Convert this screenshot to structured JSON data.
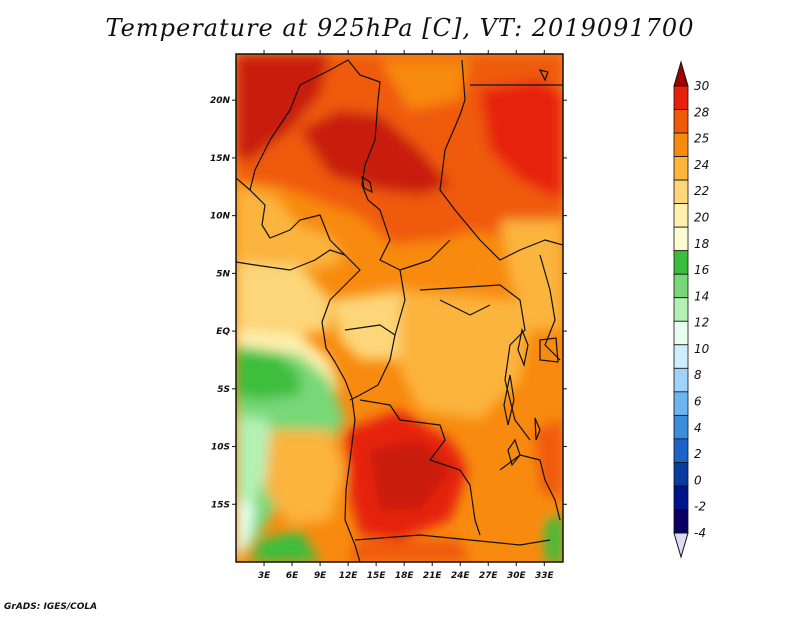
{
  "title": "Temperature at 925hPa [C], VT: 2019091700",
  "footer": "GrADS: IGES/COLA",
  "map": {
    "variable": "Temperature",
    "level": "925hPa",
    "units": "C",
    "valid_time": "2019091700",
    "lon_range": [
      0,
      35
    ],
    "lat_range": [
      -20,
      24
    ],
    "lon_ticks": [
      {
        "value": 3,
        "label": "3E"
      },
      {
        "value": 6,
        "label": "6E"
      },
      {
        "value": 9,
        "label": "9E"
      },
      {
        "value": 12,
        "label": "12E"
      },
      {
        "value": 15,
        "label": "15E"
      },
      {
        "value": 18,
        "label": "18E"
      },
      {
        "value": 21,
        "label": "21E"
      },
      {
        "value": 24,
        "label": "24E"
      },
      {
        "value": 27,
        "label": "27E"
      },
      {
        "value": 30,
        "label": "30E"
      },
      {
        "value": 33,
        "label": "33E"
      }
    ],
    "lat_ticks": [
      {
        "value": 20,
        "label": "20N"
      },
      {
        "value": 15,
        "label": "15N"
      },
      {
        "value": 10,
        "label": "10N"
      },
      {
        "value": 5,
        "label": "5N"
      },
      {
        "value": 0,
        "label": "EQ"
      },
      {
        "value": -5,
        "label": "5S"
      },
      {
        "value": -10,
        "label": "10S"
      },
      {
        "value": -15,
        "label": "15S"
      }
    ]
  },
  "colorbar": {
    "labels": [
      "30",
      "28",
      "25",
      "24",
      "22",
      "20",
      "18",
      "16",
      "14",
      "12",
      "10",
      "8",
      "6",
      "4",
      "2",
      "0",
      "-2",
      "-4"
    ],
    "colors": [
      "#a00000",
      "#e6200c",
      "#ef5a0a",
      "#f88a0f",
      "#fbb43c",
      "#fcd678",
      "#fff0b0",
      "#fbfcd2",
      "#3cbe3c",
      "#78d878",
      "#b4f0b4",
      "#e6fff0",
      "#ceeeff",
      "#a0d2fa",
      "#6eb4f0",
      "#3c8cdc",
      "#1e64c8",
      "#0a3ca0",
      "#00148c",
      "#0a0064",
      "#dcdcfa"
    ]
  }
}
